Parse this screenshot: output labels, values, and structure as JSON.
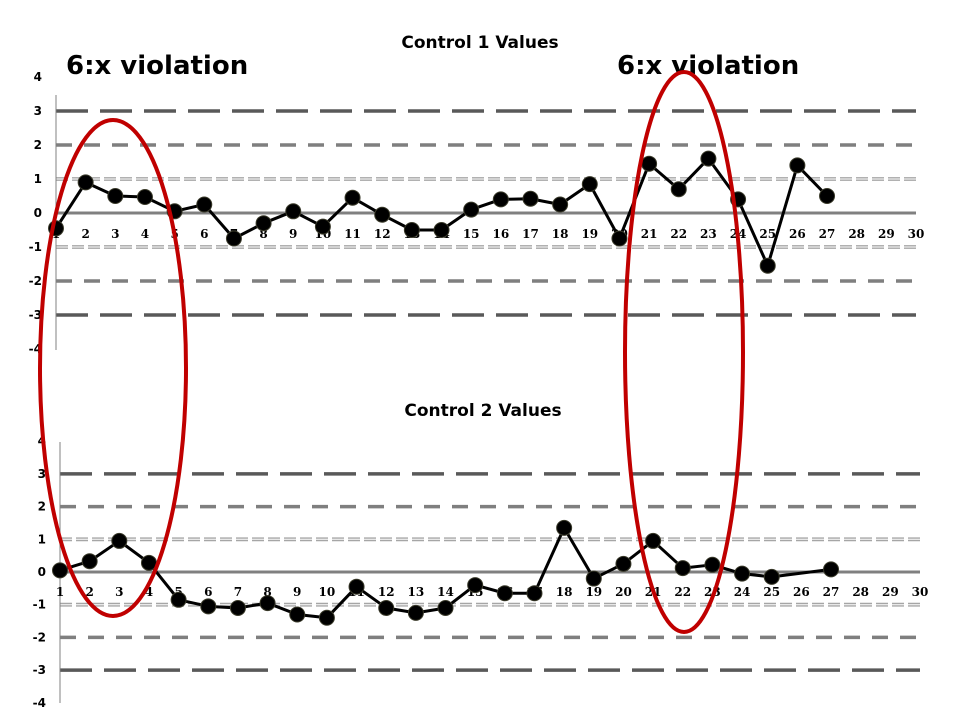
{
  "chart_data": [
    {
      "type": "line",
      "title": "Control 1 Values",
      "xlabel": "",
      "ylabel": "",
      "ylim": [
        -4,
        4
      ],
      "xlim": [
        1,
        30
      ],
      "y_ticks": [
        "4",
        "3",
        "2",
        "1",
        "0",
        "-1",
        "-2",
        "-3",
        "-4"
      ],
      "x_ticks": [
        "1",
        "2",
        "3",
        "4",
        "5",
        "6",
        "7",
        "8",
        "9",
        "10",
        "11",
        "12",
        "13",
        "14",
        "15",
        "16",
        "17",
        "18",
        "19",
        "20",
        "21",
        "22",
        "23",
        "24",
        "25",
        "26",
        "27",
        "28",
        "29",
        "30"
      ],
      "control_lines": [
        {
          "value": 3,
          "style": "long-dash dark gray"
        },
        {
          "value": 2,
          "style": "dash gray"
        },
        {
          "value": 1,
          "style": "double dash light gray"
        },
        {
          "value": 0,
          "style": "solid gray"
        },
        {
          "value": -1,
          "style": "double dash light gray"
        },
        {
          "value": -2,
          "style": "dash gray"
        },
        {
          "value": -3,
          "style": "long-dash dark gray"
        }
      ],
      "x": [
        1,
        2,
        3,
        4,
        5,
        6,
        7,
        8,
        9,
        10,
        11,
        12,
        13,
        14,
        15,
        16,
        17,
        18,
        19,
        20,
        21,
        22,
        23,
        24,
        25,
        26,
        27
      ],
      "series": [
        {
          "name": "Control 1",
          "values": [
            -0.45,
            0.9,
            0.5,
            0.47,
            0.05,
            0.25,
            -0.75,
            -0.3,
            0.05,
            -0.4,
            0.45,
            -0.05,
            -0.5,
            -0.5,
            0.1,
            0.4,
            0.42,
            0.25,
            0.85,
            -0.75,
            1.45,
            0.7,
            1.6,
            0.4,
            -1.55,
            1.4,
            0.5
          ]
        }
      ],
      "grid": false,
      "annotations": [
        {
          "text": "6:x violation",
          "target_points": [
            1,
            5
          ]
        },
        {
          "text": "6:x violation",
          "target_points": [
            20,
            24
          ]
        }
      ]
    },
    {
      "type": "line",
      "title": "Control 2 Values",
      "xlabel": "",
      "ylabel": "",
      "ylim": [
        -4,
        4
      ],
      "xlim": [
        1,
        30
      ],
      "y_ticks": [
        "4",
        "3",
        "2",
        "1",
        "0",
        "-1",
        "-2",
        "-3",
        "-4"
      ],
      "x_ticks": [
        "1",
        "2",
        "3",
        "4",
        "5",
        "6",
        "7",
        "8",
        "9",
        "10",
        "11",
        "12",
        "13",
        "14",
        "15",
        "16",
        "17",
        "18",
        "19",
        "20",
        "21",
        "22",
        "23",
        "24",
        "25",
        "26",
        "27",
        "28",
        "29",
        "30"
      ],
      "control_lines": [
        {
          "value": 3,
          "style": "long-dash dark gray"
        },
        {
          "value": 2,
          "style": "dash gray"
        },
        {
          "value": 1,
          "style": "double dash light gray"
        },
        {
          "value": 0,
          "style": "solid gray"
        },
        {
          "value": -1,
          "style": "double dash light gray"
        },
        {
          "value": -2,
          "style": "dash gray"
        },
        {
          "value": -3,
          "style": "long-dash dark gray"
        }
      ],
      "x": [
        1,
        2,
        3,
        4,
        5,
        6,
        7,
        8,
        9,
        10,
        11,
        12,
        13,
        14,
        15,
        16,
        17,
        18,
        19,
        20,
        21,
        22,
        23,
        24,
        25,
        27
      ],
      "series": [
        {
          "name": "Control 2",
          "values": [
            0.05,
            0.33,
            0.95,
            0.28,
            -0.85,
            -1.05,
            -1.1,
            -0.95,
            -1.3,
            -1.4,
            -0.45,
            -1.1,
            -1.25,
            -1.1,
            -0.4,
            -0.65,
            -0.65,
            1.35,
            -0.2,
            0.25,
            0.95,
            0.12,
            0.22,
            -0.05,
            -0.15,
            0.08
          ]
        }
      ],
      "grid": false
    }
  ],
  "annotations": {
    "left": "6:x violation",
    "right": "6:x violation",
    "highlight_color": "#c00000"
  },
  "colors": {
    "line": "#000000",
    "marker": "#000000",
    "sd3": "#595959",
    "sd2": "#7f7f7f",
    "sd1": "#a6a6a6",
    "mean": "#808080",
    "ellipse": "#c00000"
  }
}
